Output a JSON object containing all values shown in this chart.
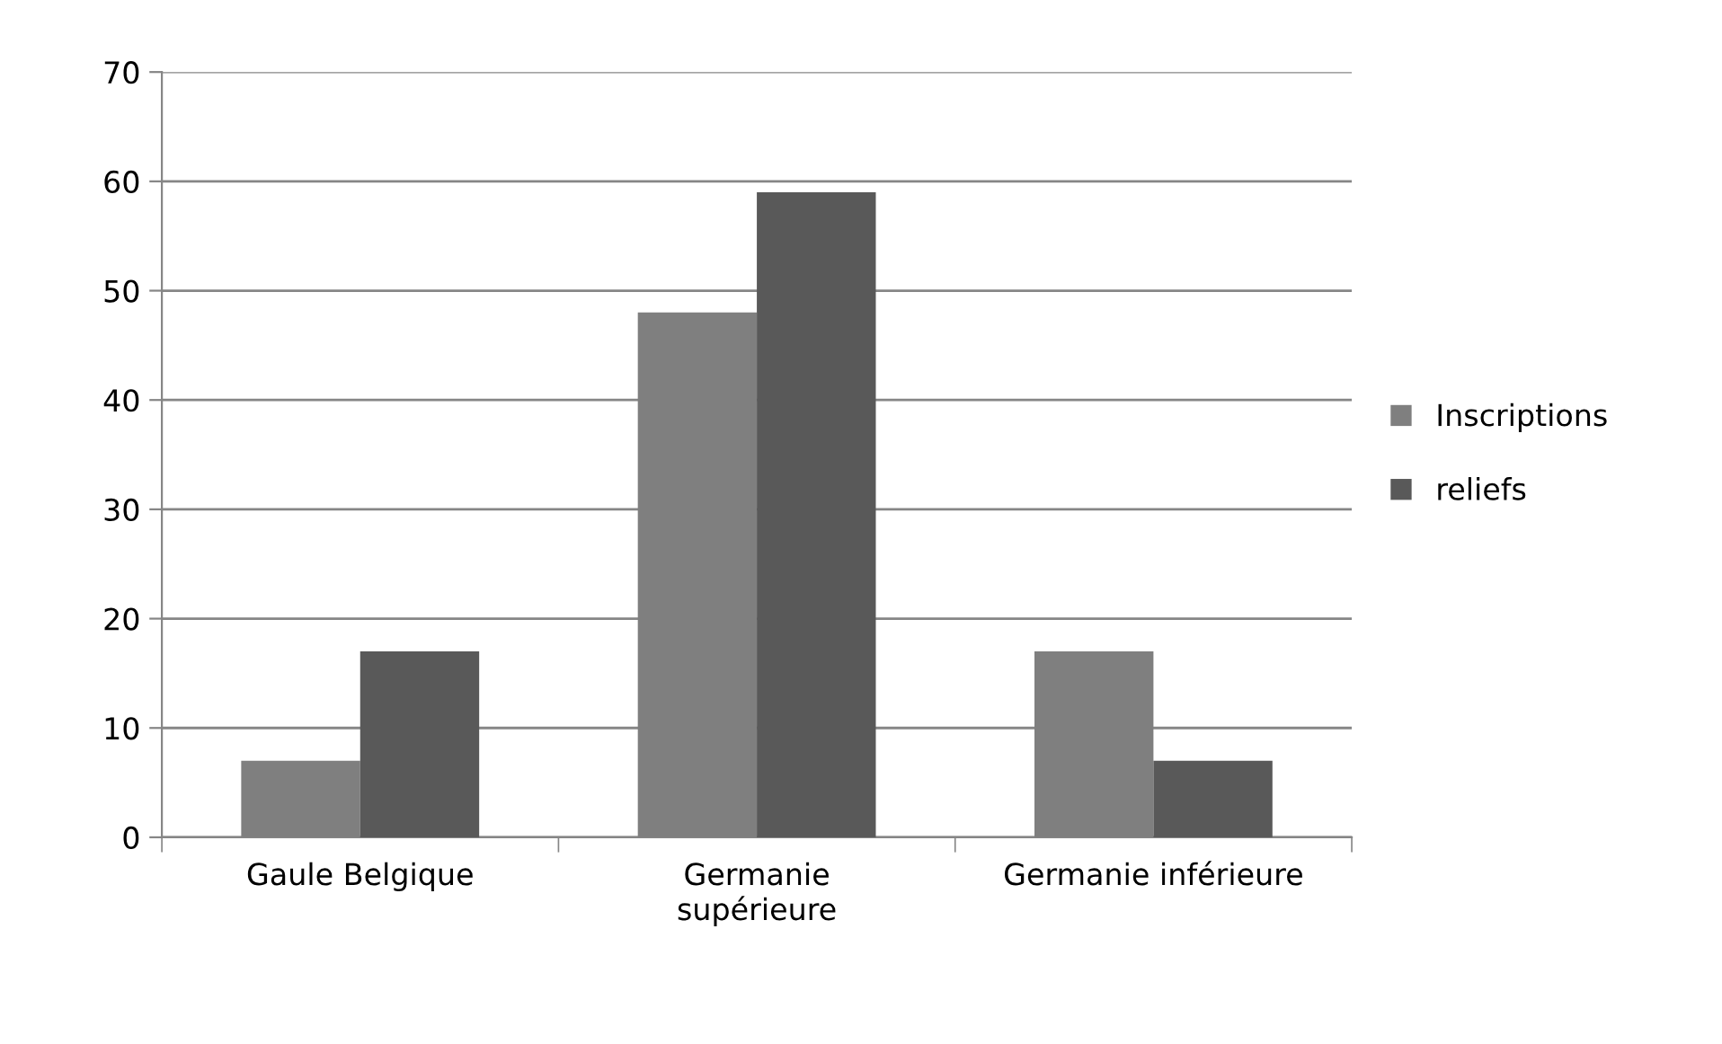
{
  "chart_data": {
    "type": "bar",
    "categories": [
      "Gaule Belgique",
      "Germanie\nsupérieure",
      "Germanie inférieure"
    ],
    "series": [
      {
        "name": "Inscriptions",
        "color": "#7f7f7f",
        "values": [
          7,
          48,
          17
        ]
      },
      {
        "name": "reliefs",
        "color": "#595959",
        "values": [
          17,
          59,
          7
        ]
      }
    ],
    "ylim": [
      0,
      70
    ],
    "yticks": [
      0,
      10,
      20,
      30,
      40,
      50,
      60,
      70
    ],
    "grid": "y",
    "legend": "right"
  }
}
